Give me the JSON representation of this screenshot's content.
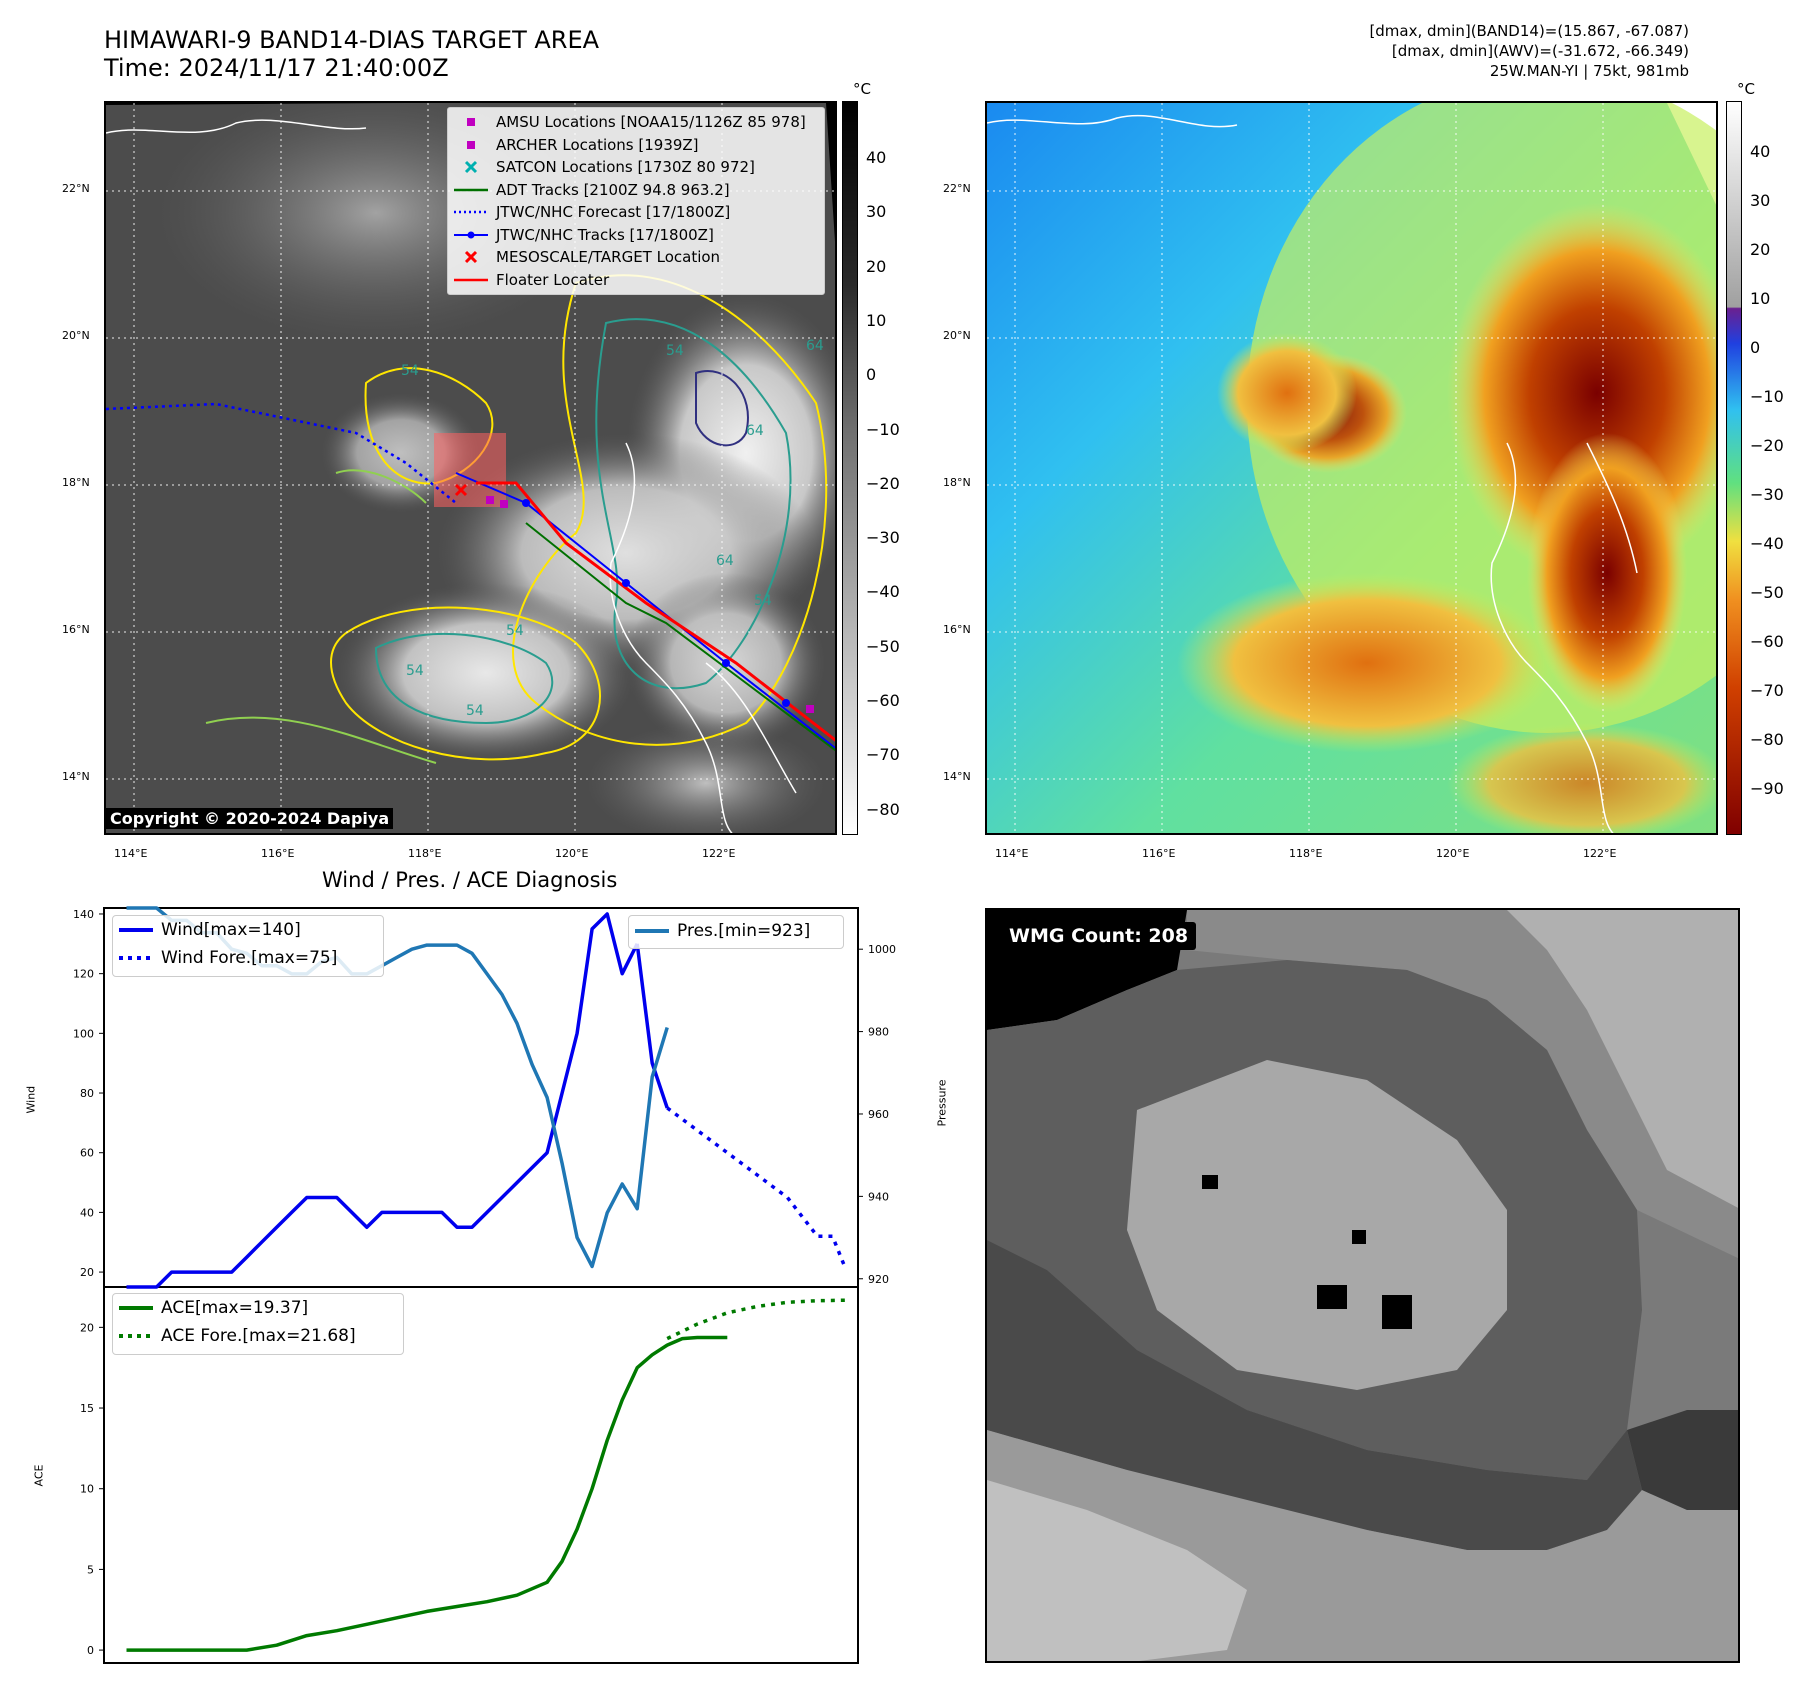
{
  "header": {
    "title_line1": "HIMAWARI-9 BAND14-DIAS TARGET AREA",
    "title_line2": "Time: 2024/11/17 21:40:00Z",
    "info_line1": "[dmax, dmin](BAND14)=(15.867, -67.087)",
    "info_line2": "[dmax, dmin](AWV)=(-31.672, -66.349)",
    "info_line3": "25W.MAN-YI | 75kt, 981mb"
  },
  "map_left": {
    "lat_labels": [
      "22°N",
      "20°N",
      "18°N",
      "16°N",
      "14°N"
    ],
    "lon_labels": [
      "114°E",
      "116°E",
      "118°E",
      "120°E",
      "122°E"
    ],
    "colorbar_unit": "°C",
    "colorbar_ticks": [
      "40",
      "30",
      "20",
      "10",
      "0",
      "−10",
      "−20",
      "−30",
      "−40",
      "−50",
      "−60",
      "−70",
      "−80"
    ],
    "copyright": "Copyright © 2020-2024 Dapiya",
    "contour_labels": [
      "54",
      "54",
      "64",
      "64",
      "54",
      "54",
      "54",
      "54",
      "64"
    ],
    "legend": [
      {
        "label": "AMSU Locations [NOAA15/1126Z 85 978]",
        "color": "#c000c0",
        "symbol": "square"
      },
      {
        "label": "ARCHER Locations [1939Z]",
        "color": "#c000c0",
        "symbol": "square"
      },
      {
        "label": "SATCON Locations [1730Z 80 972]",
        "color": "#00b0b0",
        "symbol": "x"
      },
      {
        "label": "ADT Tracks [2100Z 94.8 963.2]",
        "color": "#007000",
        "symbol": "line"
      },
      {
        "label": "JTWC/NHC Forecast [17/1800Z]",
        "color": "#0000ff",
        "symbol": "dotted"
      },
      {
        "label": "JTWC/NHC Tracks [17/1800Z]",
        "color": "#0000ff",
        "symbol": "line-dot"
      },
      {
        "label": "MESOSCALE/TARGET Location",
        "color": "#ff0000",
        "symbol": "x"
      },
      {
        "label": "Floater Locater",
        "color": "#ff0000",
        "symbol": "line"
      }
    ]
  },
  "map_right": {
    "lat_labels": [
      "22°N",
      "20°N",
      "18°N",
      "16°N",
      "14°N"
    ],
    "lon_labels": [
      "114°E",
      "116°E",
      "118°E",
      "120°E",
      "122°E"
    ],
    "colorbar_unit": "°C",
    "colorbar_ticks": [
      "40",
      "30",
      "20",
      "10",
      "0",
      "−10",
      "−20",
      "−30",
      "−40",
      "−50",
      "−60",
      "−70",
      "−80",
      "−90"
    ]
  },
  "diagnosis": {
    "title": "Wind / Pres. / ACE Diagnosis",
    "wind_ylabel": "Wind",
    "pressure_ylabel": "Pressure",
    "ace_ylabel": "ACE",
    "wind_ticks": [
      "140",
      "120",
      "100",
      "80",
      "60",
      "40",
      "20"
    ],
    "pressure_ticks": [
      "1000",
      "980",
      "960",
      "940",
      "920"
    ],
    "ace_ticks": [
      "20",
      "15",
      "10",
      "5",
      "0"
    ],
    "legend_wind": "Wind[max=140]",
    "legend_wind_fore": "Wind Fore.[max=75]",
    "legend_pres": "Pres.[min=923]",
    "legend_ace": "ACE[max=19.37]",
    "legend_ace_fore": "ACE Fore.[max=21.68]"
  },
  "wmg_panel": {
    "label": "WMG Count: 208"
  },
  "chart_data": {
    "type": "line",
    "title": "Wind / Pres. / ACE Diagnosis",
    "x": [
      0,
      1,
      2,
      3,
      4,
      5,
      6,
      7,
      8,
      9,
      10,
      11,
      12,
      13,
      14,
      15,
      16,
      17,
      18,
      19,
      20,
      21,
      22,
      23,
      24,
      25,
      26,
      27,
      28,
      29,
      30,
      31,
      32,
      33,
      34,
      35,
      36,
      37,
      38,
      39,
      40,
      41,
      42,
      43,
      44,
      45
    ],
    "series": [
      {
        "name": "Wind",
        "axis": "wind",
        "style": "solid",
        "color": "#0000ee",
        "x": [
          0,
          2,
          3,
          4,
          5,
          6,
          7,
          8,
          9,
          10,
          11,
          12,
          13,
          14,
          15,
          16,
          17,
          18,
          19,
          20,
          21,
          22,
          23,
          24,
          25,
          26,
          27,
          28,
          29,
          30,
          31,
          32,
          33,
          34
        ],
        "values": [
          15,
          15,
          20,
          20,
          20,
          20,
          20,
          25,
          30,
          35,
          40,
          45,
          45,
          45,
          40,
          35,
          40,
          40,
          40,
          40,
          40,
          35,
          35,
          40,
          45,
          50,
          55,
          60,
          80,
          100,
          135,
          140,
          120,
          130
        ]
      },
      {
        "name": "Wind (end)",
        "axis": "wind",
        "style": "solid",
        "color": "#0000ee",
        "x": [
          34,
          35,
          36
        ],
        "values": [
          130,
          90,
          75
        ]
      },
      {
        "name": "Wind Fore.",
        "axis": "wind",
        "style": "dotted",
        "color": "#0000ee",
        "x": [
          36,
          40,
          44,
          46,
          47,
          47.8
        ],
        "values": [
          75,
          60,
          45,
          32,
          32,
          22
        ]
      },
      {
        "name": "Pres.",
        "axis": "pressure",
        "style": "solid",
        "color": "#1f77b4",
        "x": [
          0,
          2,
          3,
          4,
          5,
          6,
          7,
          8,
          9,
          10,
          11,
          12,
          13,
          14,
          15,
          16,
          17,
          18,
          19,
          20,
          21,
          22,
          23,
          24,
          25,
          26,
          27,
          28,
          29,
          30,
          31,
          32,
          33,
          34,
          35,
          36
        ],
        "values": [
          1010,
          1010,
          1007,
          1007,
          1004,
          1004,
          1000,
          999,
          996,
          996,
          994,
          994,
          997,
          998,
          994,
          994,
          996,
          998,
          1000,
          1001,
          1001,
          1001,
          999,
          994,
          989,
          982,
          972,
          964,
          948,
          930,
          923,
          936,
          943,
          937,
          969,
          981
        ]
      },
      {
        "name": "ACE",
        "axis": "ace",
        "style": "solid",
        "color": "#007a00",
        "x": [
          0,
          2,
          4,
          6,
          8,
          10,
          12,
          14,
          16,
          18,
          20,
          22,
          24,
          26,
          28,
          29,
          30,
          31,
          32,
          33,
          34,
          35,
          36,
          37,
          38,
          39,
          40
        ],
        "values": [
          0,
          0,
          0,
          0,
          0,
          0.3,
          0.9,
          1.2,
          1.6,
          2.0,
          2.4,
          2.7,
          3.0,
          3.4,
          4.2,
          5.5,
          7.5,
          10.0,
          13.0,
          15.5,
          17.5,
          18.3,
          18.9,
          19.3,
          19.37,
          19.37,
          19.37
        ]
      },
      {
        "name": "ACE Fore.",
        "axis": "ace",
        "style": "dotted",
        "color": "#007a00",
        "x": [
          36,
          38,
          40,
          42,
          44,
          46,
          48
        ],
        "values": [
          19.3,
          20.2,
          20.9,
          21.3,
          21.55,
          21.65,
          21.68
        ]
      }
    ],
    "wind_ylim": [
      15,
      142
    ],
    "pressure_ylim": [
      918,
      1010
    ],
    "ace_ylim": [
      -0.8,
      22.5
    ],
    "xlim": [
      -1.5,
      48.7
    ]
  }
}
